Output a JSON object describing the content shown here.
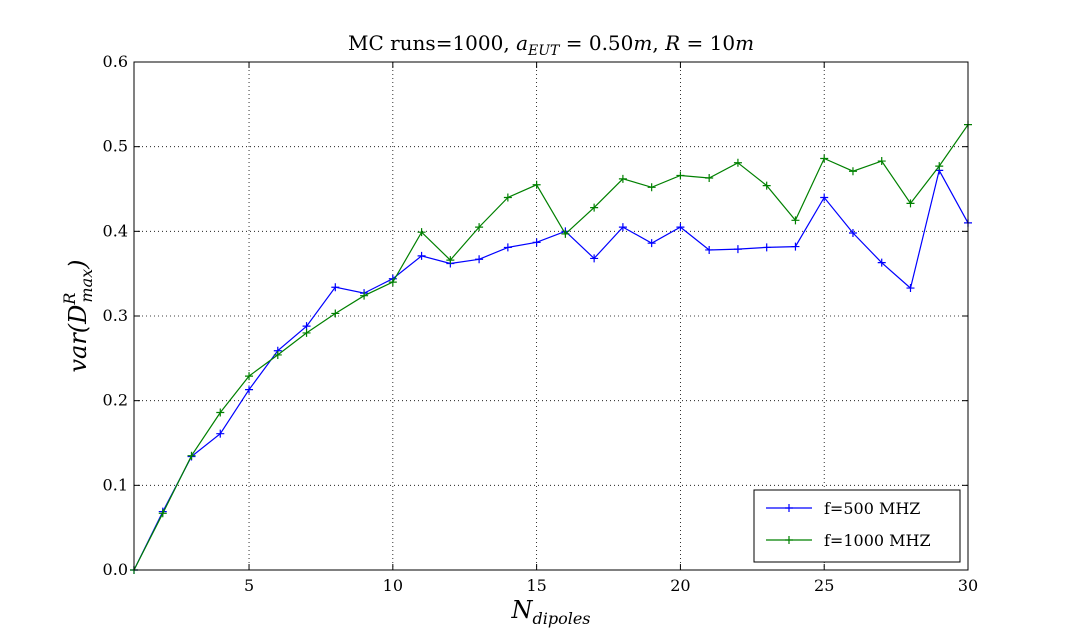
{
  "chart_data": {
    "type": "line",
    "title": "MC runs=1000, a_EUT = 0.50m, R = 10m",
    "title_parts": {
      "prefix": "MC runs=1000, ",
      "a_symbol": "a",
      "a_sub": "EUT",
      "a_value": " = 0.50",
      "a_unit": "m",
      "sep": ", ",
      "r_symbol": "R",
      "r_value": " = 10",
      "r_unit": "m"
    },
    "xlabel": "N_dipoles",
    "xlabel_parts": {
      "main": "N",
      "sub": "dipoles"
    },
    "ylabel": "var(D^R_max)",
    "ylabel_parts": {
      "pre": "var(",
      "main": "D",
      "sup": "R",
      "sub": "max",
      "post": ")"
    },
    "xlim": [
      1,
      30
    ],
    "ylim": [
      0.0,
      0.6
    ],
    "xticks": [
      5,
      10,
      15,
      20,
      25,
      30
    ],
    "yticks": [
      0.0,
      0.1,
      0.2,
      0.3,
      0.4,
      0.5,
      0.6
    ],
    "ytick_labels": [
      "0.0",
      "0.1",
      "0.2",
      "0.3",
      "0.4",
      "0.5",
      "0.6"
    ],
    "grid": true,
    "legend_position": "lower-right",
    "x": [
      1,
      2,
      3,
      4,
      5,
      6,
      7,
      8,
      9,
      10,
      11,
      12,
      13,
      14,
      15,
      16,
      17,
      18,
      19,
      20,
      21,
      22,
      23,
      24,
      25,
      26,
      27,
      28,
      29,
      30
    ],
    "series": [
      {
        "name": "f=500 MHZ",
        "color": "#0000ff",
        "values": [
          0.0,
          0.069,
          0.134,
          0.161,
          0.213,
          0.259,
          0.288,
          0.334,
          0.327,
          0.344,
          0.371,
          0.362,
          0.367,
          0.381,
          0.387,
          0.4,
          0.368,
          0.405,
          0.386,
          0.405,
          0.378,
          0.379,
          0.381,
          0.382,
          0.44,
          0.398,
          0.363,
          0.333,
          0.472,
          0.41
        ]
      },
      {
        "name": "f=1000 MHZ",
        "color": "#008000",
        "values": [
          0.0,
          0.067,
          0.135,
          0.186,
          0.229,
          0.254,
          0.28,
          0.303,
          0.324,
          0.34,
          0.399,
          0.366,
          0.405,
          0.44,
          0.455,
          0.397,
          0.428,
          0.462,
          0.452,
          0.466,
          0.463,
          0.481,
          0.454,
          0.413,
          0.486,
          0.471,
          0.483,
          0.433,
          0.477,
          0.526
        ]
      }
    ]
  }
}
